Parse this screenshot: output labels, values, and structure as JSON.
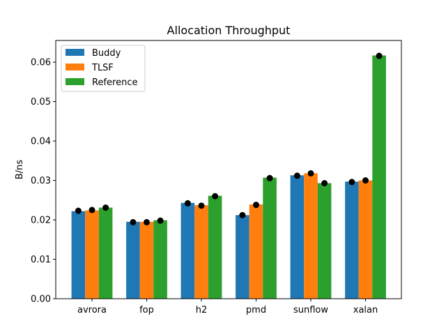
{
  "chart_data": {
    "type": "bar",
    "title": "Allocation Throughput",
    "xlabel": "",
    "ylabel": "B/ns",
    "ylim": [
      0,
      0.0655
    ],
    "yticks": [
      0.0,
      0.01,
      0.02,
      0.03,
      0.04,
      0.05,
      0.06
    ],
    "ytick_labels": [
      "0.00",
      "0.01",
      "0.02",
      "0.03",
      "0.04",
      "0.05",
      "0.06"
    ],
    "categories": [
      "avrora",
      "fop",
      "h2",
      "pmd",
      "sunflow",
      "xalan"
    ],
    "series": [
      {
        "name": "Buddy",
        "color": "#1f77b4",
        "values": [
          0.0222,
          0.0195,
          0.0243,
          0.0212,
          0.0313,
          0.0297
        ],
        "markers": [
          0.0223,
          0.0194,
          0.0242,
          0.0212,
          0.0312,
          0.0296
        ]
      },
      {
        "name": "TLSF",
        "color": "#ff7f0e",
        "values": [
          0.0224,
          0.0195,
          0.0237,
          0.0239,
          0.0318,
          0.03
        ],
        "markers": [
          0.0225,
          0.0194,
          0.0236,
          0.0238,
          0.0318,
          0.03
        ]
      },
      {
        "name": "Reference",
        "color": "#2ca02c",
        "values": [
          0.0231,
          0.0199,
          0.0261,
          0.0307,
          0.0293,
          0.0617
        ],
        "markers": [
          0.0231,
          0.0198,
          0.026,
          0.0306,
          0.0293,
          0.0616
        ]
      }
    ],
    "marker_color": "#000000",
    "grid": false,
    "legend_position": "top-left"
  }
}
